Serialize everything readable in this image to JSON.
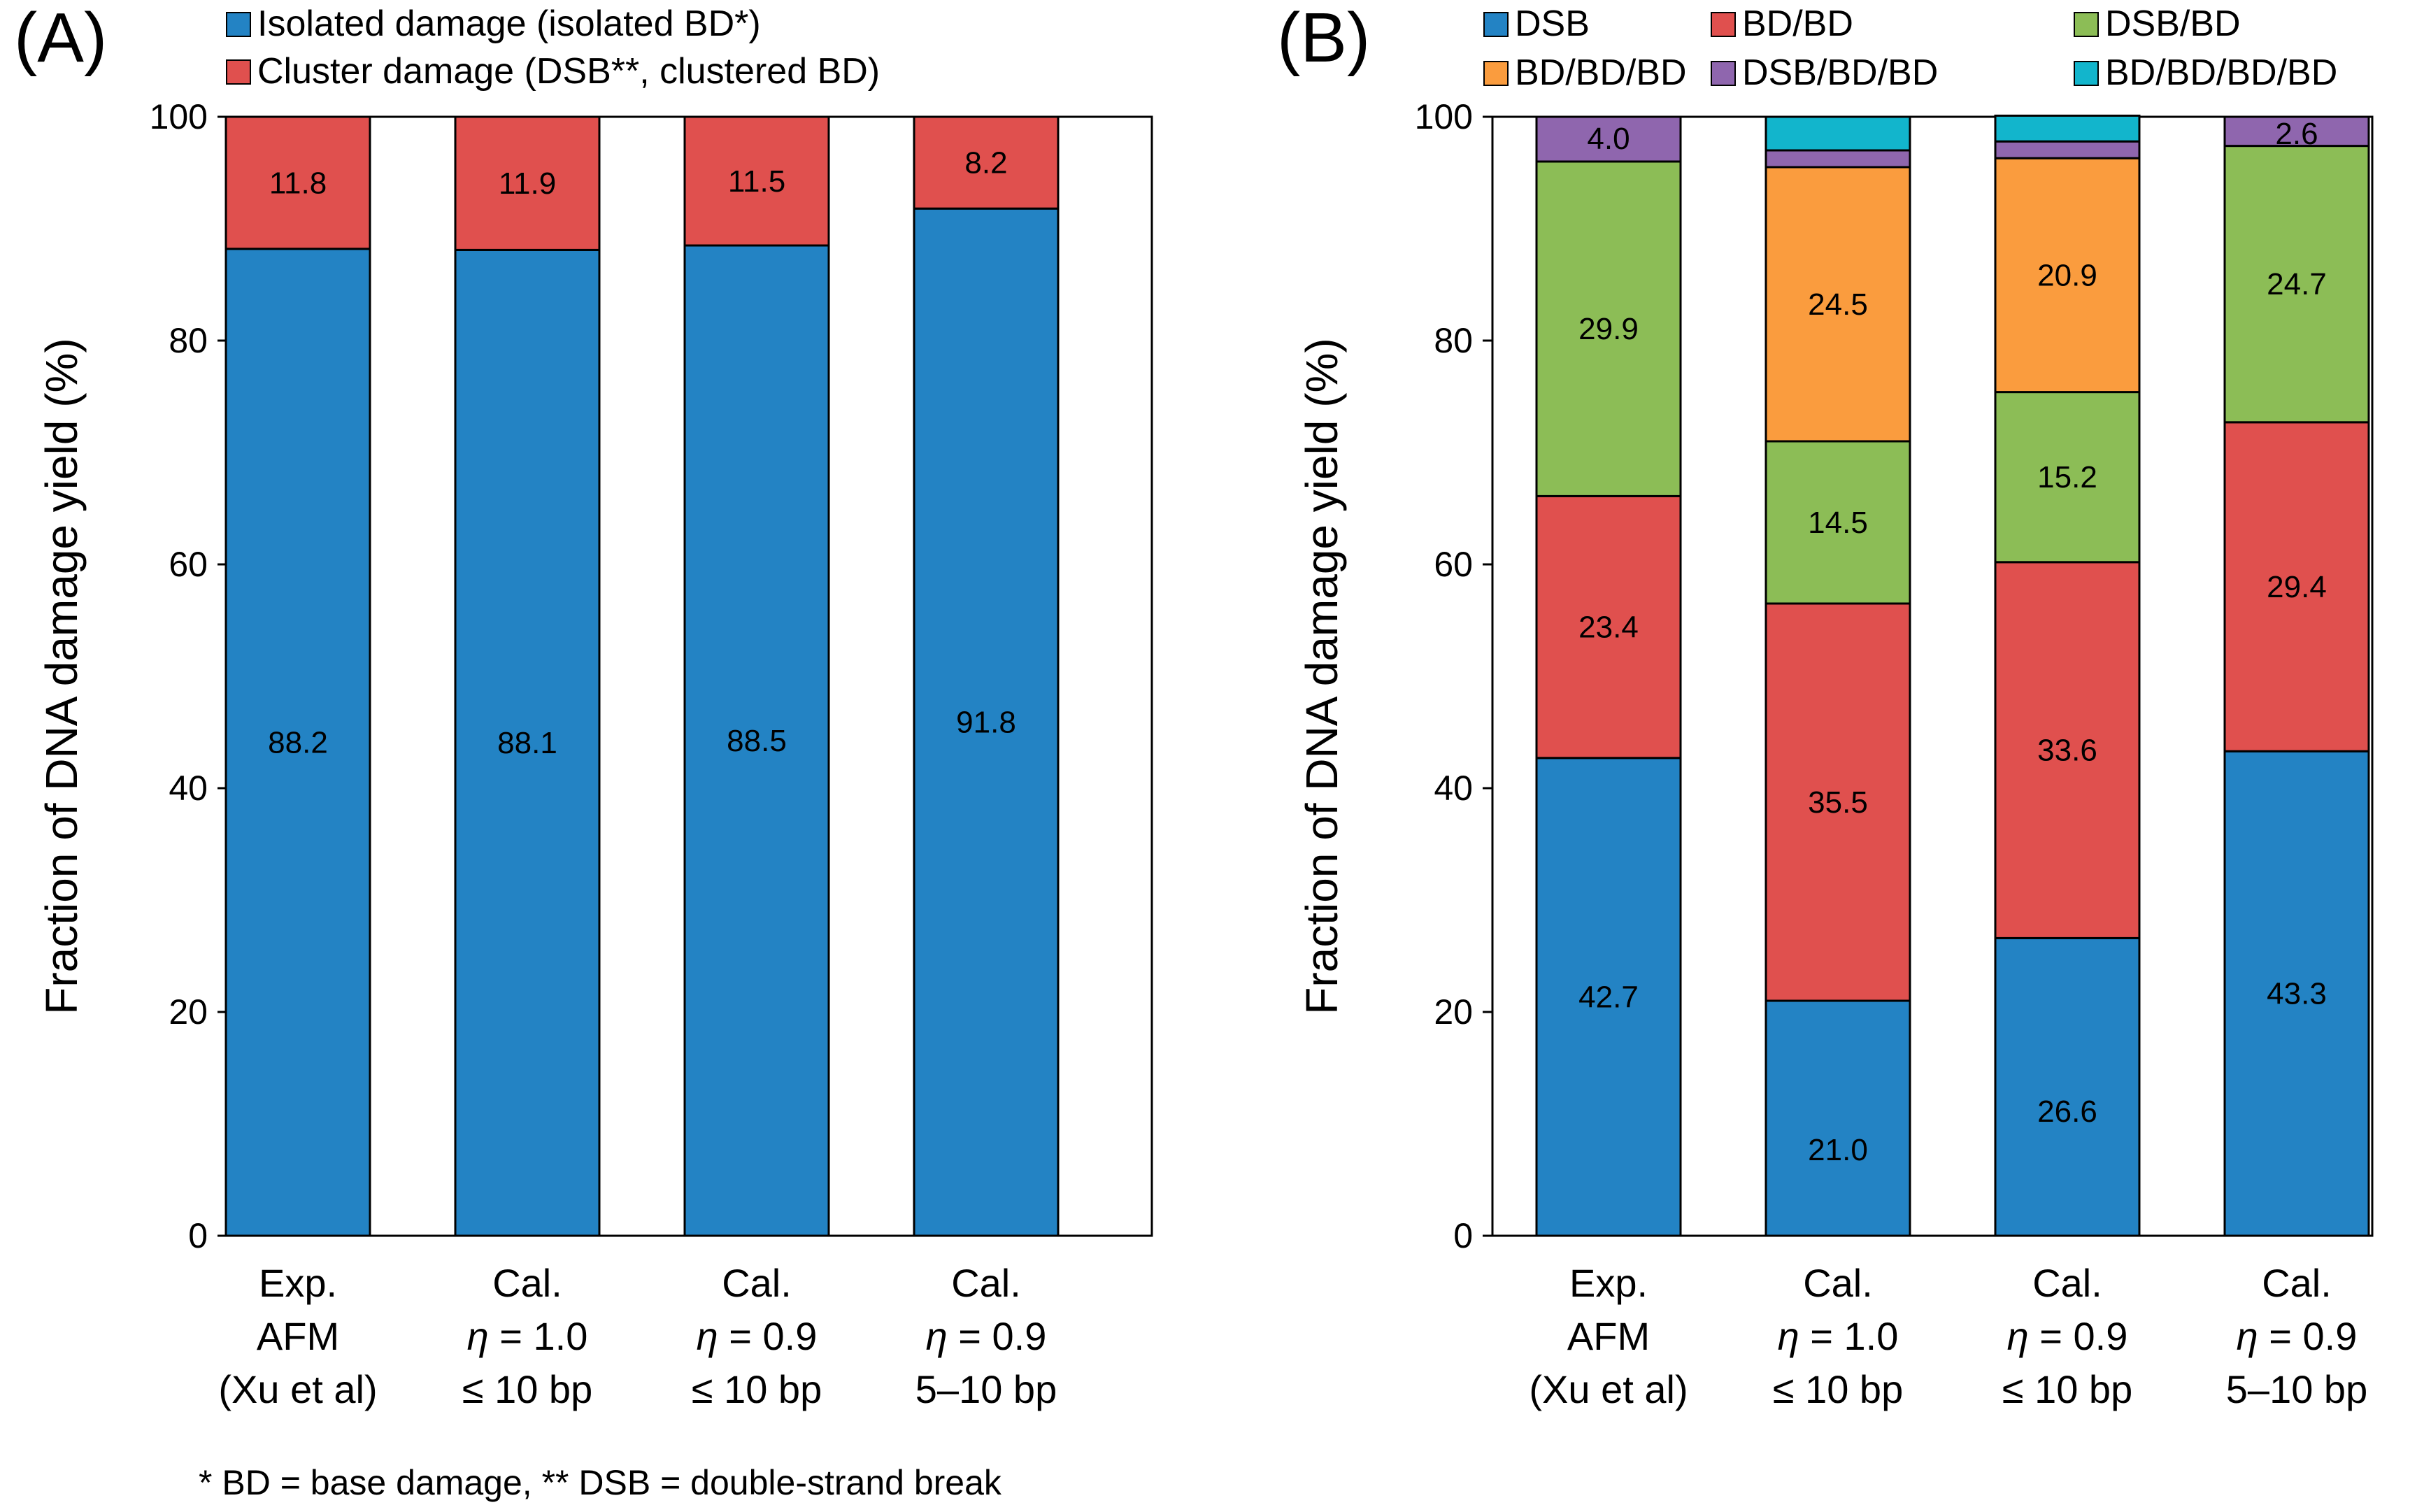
{
  "footnote": "* BD = base damage, **  DSB = double-strand break",
  "chart_data": [
    {
      "type": "bar",
      "stacked": true,
      "panel": "(A)",
      "ylabel": "Fraction of DNA damage yield (%)",
      "ylim": [
        0,
        100
      ],
      "yticks": [
        0,
        20,
        40,
        60,
        80,
        100
      ],
      "grid": false,
      "legend_position": "top",
      "categories": [
        [
          "Exp.",
          "AFM",
          "(Xu et al)"
        ],
        [
          "Cal.",
          "η = 1.0",
          "≤ 10 bp"
        ],
        [
          "Cal.",
          "η = 0.9",
          "≤ 10 bp"
        ],
        [
          "Cal.",
          "η = 0.9",
          "5–10 bp"
        ]
      ],
      "series": [
        {
          "name": "Isolated damage   (isolated BD*)",
          "color": "#2383c4",
          "values": [
            88.2,
            88.1,
            88.5,
            91.8
          ],
          "labels": [
            "88.2",
            "88.1",
            "88.5",
            "91.8"
          ]
        },
        {
          "name": "Cluster damage (DSB**, clustered BD)",
          "color": "#e0504e",
          "values": [
            11.8,
            11.9,
            11.5,
            8.2
          ],
          "labels": [
            "11.8",
            "11.9",
            "11.5",
            "8.2"
          ]
        }
      ]
    },
    {
      "type": "bar",
      "stacked": true,
      "panel": "(B)",
      "ylabel": "Fraction of DNA damage yield (%)",
      "ylim": [
        0,
        100
      ],
      "yticks": [
        0,
        20,
        40,
        60,
        80,
        100
      ],
      "grid": false,
      "legend_position": "top",
      "categories": [
        [
          "Exp.",
          "AFM",
          "(Xu et al)"
        ],
        [
          "Cal.",
          "η = 1.0",
          "≤ 10 bp"
        ],
        [
          "Cal.",
          "η = 0.9",
          "≤ 10 bp"
        ],
        [
          "Cal.",
          "η = 0.9",
          "5–10 bp"
        ]
      ],
      "series": [
        {
          "name": "DSB",
          "color": "#2383c4",
          "values": [
            42.7,
            21.0,
            26.6,
            43.3
          ],
          "labels": [
            "42.7",
            "21.0",
            "26.6",
            "43.3"
          ]
        },
        {
          "name": "BD/BD",
          "color": "#e0504e",
          "values": [
            23.4,
            35.5,
            33.6,
            29.4
          ],
          "labels": [
            "23.4",
            "35.5",
            "33.6",
            "29.4"
          ]
        },
        {
          "name": "DSB/BD",
          "color": "#8cbd56",
          "values": [
            29.9,
            14.5,
            15.2,
            24.7
          ],
          "labels": [
            "29.9",
            "14.5",
            "15.2",
            "24.7"
          ]
        },
        {
          "name": "BD/BD/BD",
          "color": "#fa9c3e",
          "values": [
            0,
            24.5,
            20.9,
            0
          ],
          "labels": [
            "",
            "24.5",
            "20.9",
            ""
          ]
        },
        {
          "name": "DSB/BD/BD",
          "color": "#8f66ae",
          "values": [
            4.0,
            1.5,
            1.5,
            2.6
          ],
          "labels": [
            "4.0",
            "",
            "",
            "2.6"
          ]
        },
        {
          "name": "BD/BD/BD/BD",
          "color": "#12b5cc",
          "values": [
            0,
            3.0,
            2.3,
            0
          ],
          "labels": [
            "",
            "",
            "",
            ""
          ]
        }
      ]
    }
  ]
}
